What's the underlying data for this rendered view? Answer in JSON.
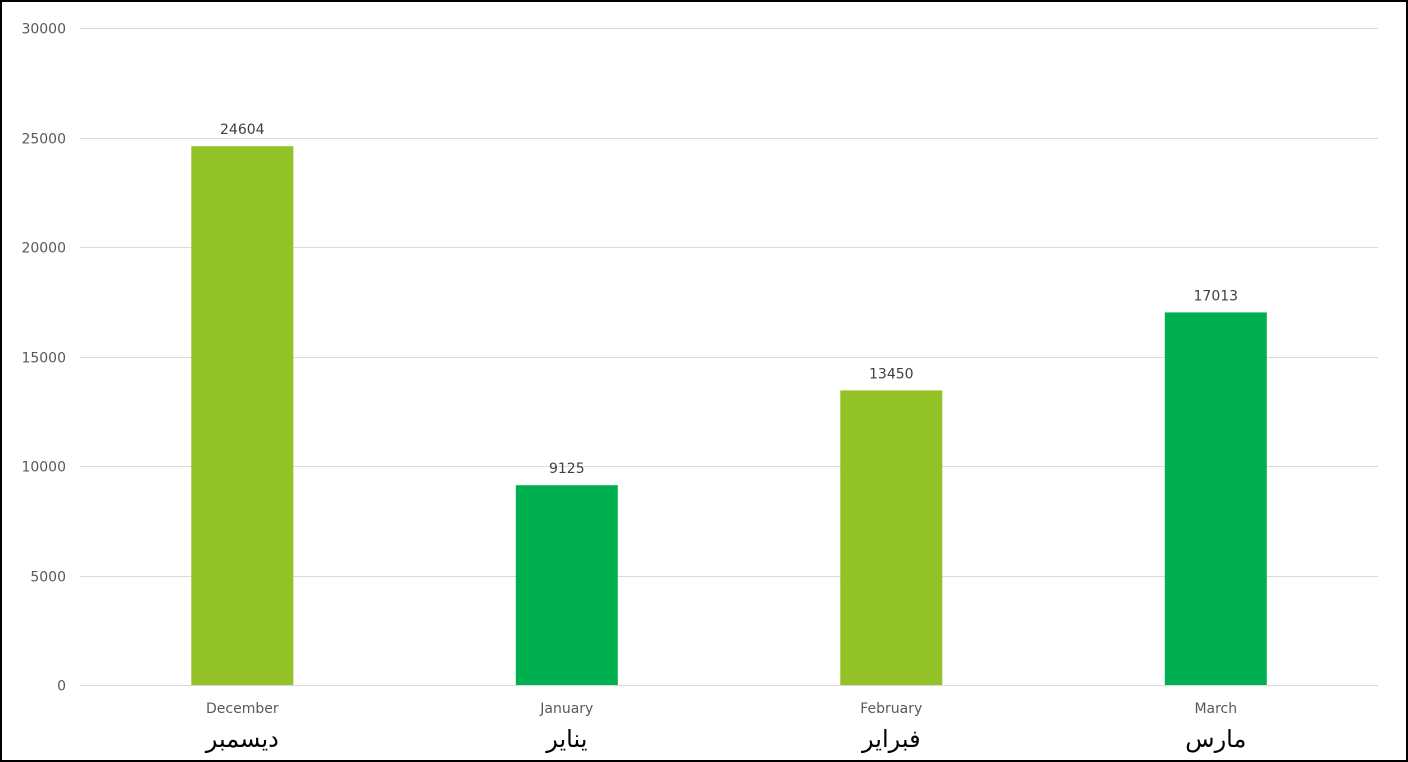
{
  "chart_data": {
    "type": "bar",
    "categories": [
      "December",
      "January",
      "February",
      "March"
    ],
    "categories_ar": [
      "ديسمبر",
      "يناير",
      "فبراير",
      "مارس"
    ],
    "values": [
      24604,
      9125,
      13450,
      17013
    ],
    "bar_colors": [
      "#92C225",
      "#00B050",
      "#92C225",
      "#00B050"
    ],
    "ylim": [
      0,
      30000
    ],
    "yticks": [
      0,
      5000,
      10000,
      15000,
      20000,
      25000,
      30000
    ],
    "grid": true,
    "gridline_color": "#d9d9d9",
    "data_labels": true,
    "title": "",
    "xlabel": "",
    "ylabel": ""
  }
}
